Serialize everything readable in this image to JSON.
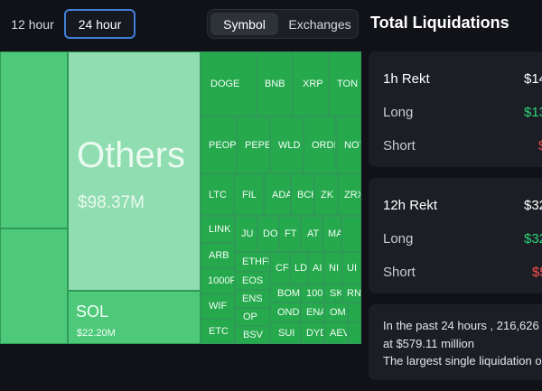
{
  "time_tabs": [
    {
      "label": "12 hour"
    },
    {
      "label": "24 hour",
      "active": true
    }
  ],
  "view_tabs": [
    {
      "label": "Symbol",
      "active": true
    },
    {
      "label": "Exchanges"
    }
  ],
  "colors": {
    "tile_dark": "#26a84d",
    "tile_mid": "#4ec97a",
    "tile_light": "#8fddb0",
    "positive": "#2fd47a",
    "negative": "#ff4d4f"
  },
  "treemap": {
    "others": {
      "name": "Others",
      "value": "$98.37M"
    },
    "sol": {
      "name": "SOL",
      "value": "$22.20M"
    },
    "labels": [
      "DOGE",
      "BNB",
      "XRP",
      "TON",
      "PEOPI",
      "PEPE",
      "WLD",
      "ORDI",
      "NOT",
      "LTC",
      "FIL",
      "ADA",
      "BCH",
      "ZK",
      "ZRX",
      "LINK",
      "JU",
      "DO",
      "FT",
      "AT",
      "MA",
      "ARB",
      "ETHFI",
      "CF",
      "LD",
      "AI",
      "NI",
      "UI",
      "1000F",
      "EOS",
      "WIF",
      "ENS",
      "BOM",
      "100",
      "SK",
      "RN",
      "OP",
      "OND",
      "ENA",
      "OM",
      "ETC",
      "BSV",
      "SUI",
      "DYD",
      "AEV"
    ]
  },
  "panel": {
    "title": "Total Liquidations",
    "card1": {
      "header": "1h Rekt",
      "header_val": "$14",
      "long_label": "Long",
      "long_val": "$13",
      "short_label": "Short",
      "short_val": "$"
    },
    "card2": {
      "header": "12h Rekt",
      "header_val": "$32",
      "long_label": "Long",
      "long_val": "$32",
      "short_label": "Short",
      "short_val": "$5"
    },
    "summary": {
      "line1": "In the past 24 hours , 216,626 tra",
      "line2": "at $579.11 million",
      "line3": "The largest single liquidation ord"
    }
  }
}
